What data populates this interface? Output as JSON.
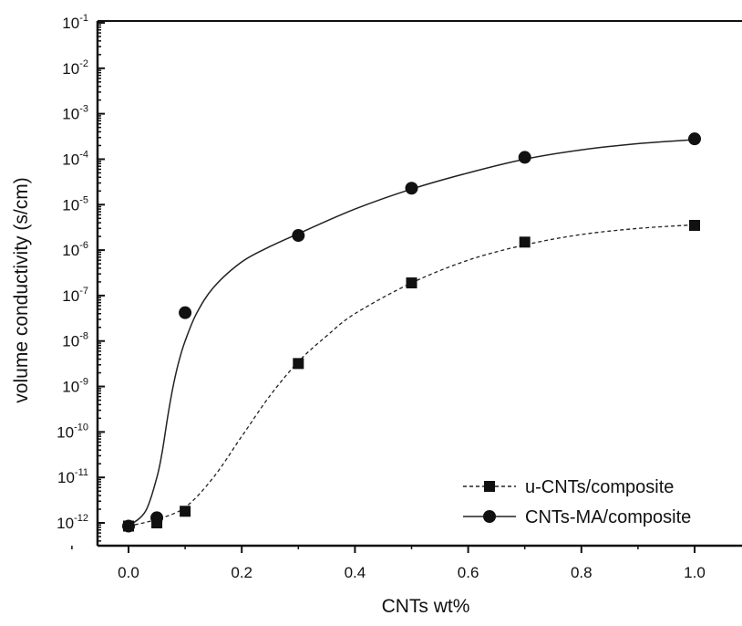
{
  "chart_data": {
    "type": "scatter",
    "xlabel": "CNTs wt%",
    "ylabel": "volume conductivity (s/cm)",
    "xlim": [
      -0.1,
      1.1
    ],
    "ylim_log10": [
      -12.5,
      -1
    ],
    "yscale": "log",
    "x_ticks": [
      0.0,
      0.2,
      0.4,
      0.6,
      0.8,
      1.0
    ],
    "x_tick_labels": [
      "0.0",
      "0.2",
      "0.4",
      "0.6",
      "0.8",
      "1.0"
    ],
    "y_tick_exponents": [
      -12,
      -11,
      -10,
      -9,
      -8,
      -7,
      -6,
      -5,
      -4,
      -3,
      -2,
      -1
    ],
    "y_tick_base": "10",
    "grid": false,
    "legend_position": "bottom-right",
    "series": [
      {
        "name": "u-CNTs/composite",
        "marker": "square",
        "line": "dashed",
        "x": [
          0.0,
          0.05,
          0.1,
          0.3,
          0.5,
          0.7,
          1.0
        ],
        "y": [
          8.5e-13,
          1e-12,
          1.8e-12,
          3.2e-09,
          1.9e-07,
          1.5e-06,
          3.5e-06
        ],
        "fit_x": [
          0.0,
          0.05,
          0.1,
          0.15,
          0.2,
          0.25,
          0.3,
          0.35,
          0.4,
          0.5,
          0.6,
          0.7,
          0.8,
          0.9,
          1.0
        ],
        "fit_y": [
          8.5e-13,
          1.2e-12,
          2.2e-12,
          1e-11,
          8e-11,
          6.3e-10,
          3.5e-09,
          1.3e-08,
          4e-08,
          1.9e-07,
          6e-07,
          1.3e-06,
          2.2e-06,
          3e-06,
          3.6e-06
        ]
      },
      {
        "name": "CNTs-MA/composite",
        "marker": "circle",
        "line": "solid",
        "x": [
          0.0,
          0.05,
          0.1,
          0.3,
          0.5,
          0.7,
          1.0
        ],
        "y": [
          8.5e-13,
          1.3e-12,
          4.2e-08,
          2.1e-06,
          2.3e-05,
          0.00011,
          0.00028
        ],
        "fit_x": [
          0.0,
          0.03,
          0.05,
          0.06,
          0.07,
          0.08,
          0.09,
          0.1,
          0.12,
          0.15,
          0.2,
          0.25,
          0.3,
          0.4,
          0.5,
          0.6,
          0.7,
          0.8,
          0.9,
          1.0
        ],
        "fit_y": [
          8.5e-13,
          1.8e-12,
          1e-11,
          4e-11,
          2.5e-10,
          1.2e-09,
          4e-09,
          1e-08,
          4e-08,
          1.5e-07,
          5.5e-07,
          1.2e-06,
          2.3e-06,
          8e-06,
          2.2e-05,
          5e-05,
          0.0001,
          0.00016,
          0.00022,
          0.00027
        ]
      }
    ]
  }
}
